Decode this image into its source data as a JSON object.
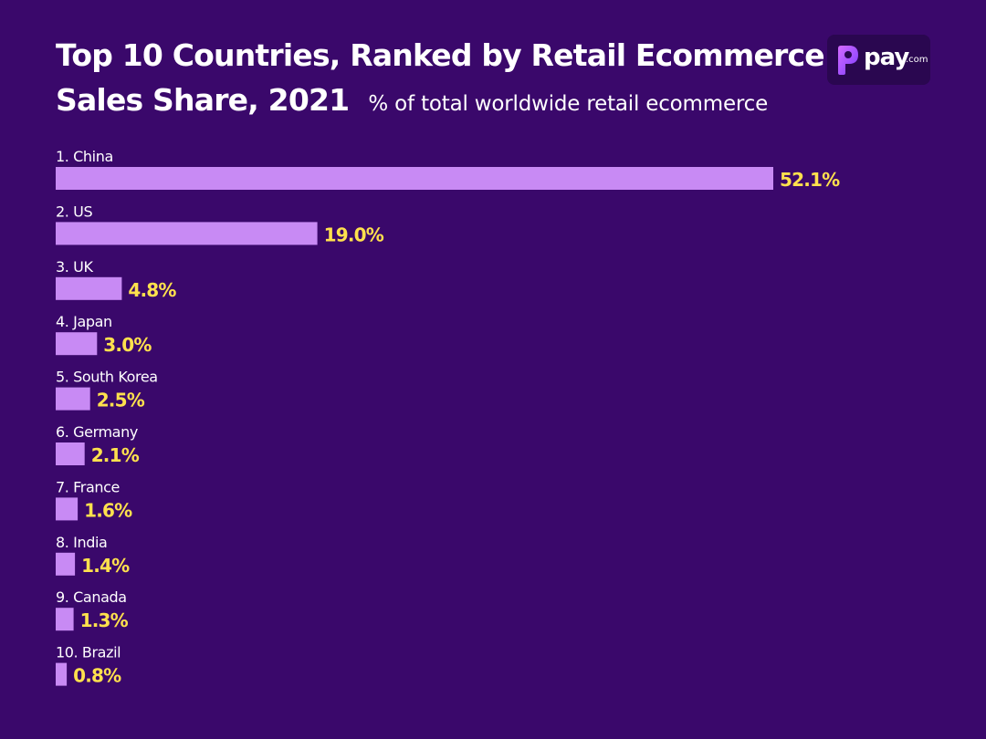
{
  "header": {
    "title_line1": "Top 10 Countries, Ranked by Retail Ecommerce",
    "title_line2": "Sales Share, 2021",
    "subtitle": "% of total worldwide retail ecommerce"
  },
  "logo": {
    "brand": "pay",
    "tld": ".com"
  },
  "colors": {
    "background": "#3a086b",
    "bar": "#c88af4",
    "value_label": "#ffe14d",
    "text": "#ffffff"
  },
  "chart_data": {
    "type": "bar",
    "orientation": "horizontal",
    "title": "Top 10 Countries, Ranked by Retail Ecommerce Sales Share, 2021",
    "subtitle": "% of total worldwide retail ecommerce",
    "categories": [
      "1. China",
      "2. US",
      "3. UK",
      "4. Japan",
      "5. South Korea",
      "6. Germany",
      "7. France",
      "8. India",
      "9. Canada",
      "10. Brazil"
    ],
    "values": [
      52.1,
      19.0,
      4.8,
      3.0,
      2.5,
      2.1,
      1.6,
      1.4,
      1.3,
      0.8
    ],
    "value_labels": [
      "52.1%",
      "19.0%",
      "4.8%",
      "3.0%",
      "2.5%",
      "2.1%",
      "1.6%",
      "1.4%",
      "1.3%",
      "0.8%"
    ],
    "unit": "%",
    "xlim": [
      0,
      52.1
    ],
    "grid": false,
    "legend": "none"
  }
}
